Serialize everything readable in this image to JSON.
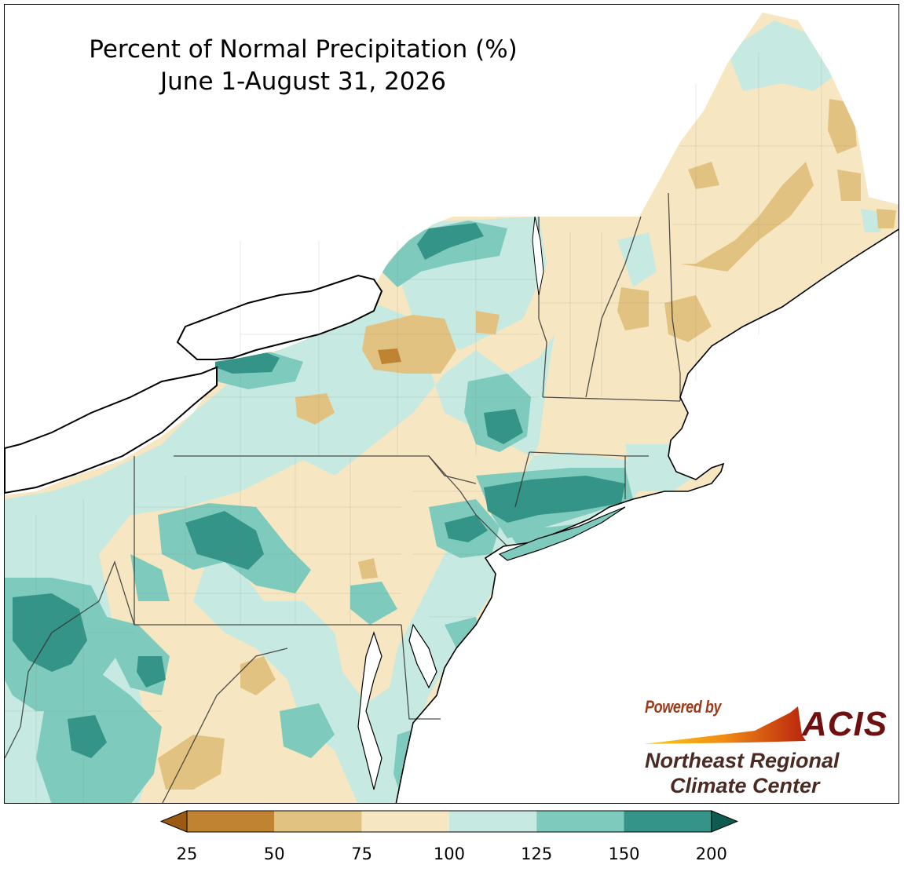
{
  "title": {
    "line1": "Percent of Normal Precipitation (%)",
    "line2": "June 1-August 31, 2026"
  },
  "legend": {
    "colors": [
      "#9a5a12",
      "#c08332",
      "#e2c280",
      "#f6e6c2",
      "#c6e9e1",
      "#7ecbbd",
      "#339487",
      "#0e5b52"
    ],
    "ticks": [
      "25",
      "50",
      "75",
      "100",
      "125",
      "150",
      "200"
    ]
  },
  "logo": {
    "powered_by": "Powered by",
    "acis": "ACIS",
    "org_line1": "Northeast Regional",
    "org_line2": "Climate Center"
  },
  "map": {
    "region": "Northeastern United States",
    "states": [
      "Maine",
      "New Hampshire",
      "Vermont",
      "Massachusetts",
      "Rhode Island",
      "Connecticut",
      "New York",
      "Pennsylvania",
      "New Jersey",
      "Delaware",
      "Maryland",
      "West Virginia"
    ]
  }
}
